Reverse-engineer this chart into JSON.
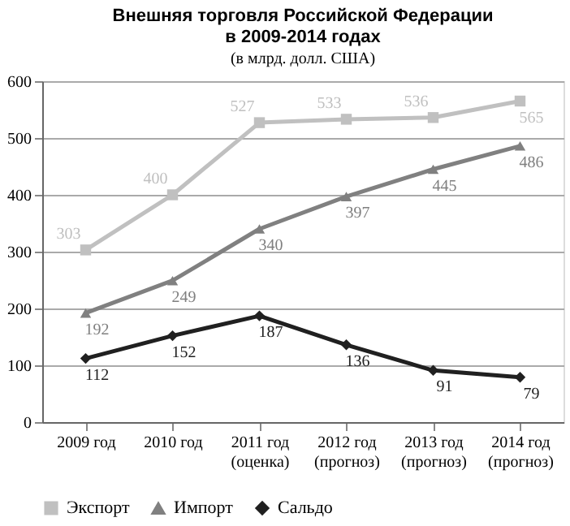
{
  "chart_data": {
    "type": "line",
    "title": "Внешняя торговля Российской  Федерации\nв  2009-2014 годах",
    "subtitle": "(в  млрд. долл. США)",
    "categories": [
      "2009 год",
      "2010 год",
      "2011 год\n(оценка)",
      "2012 год\n(прогноз)",
      "2013 год\n(прогноз)",
      "2014 год\n(прогноз)"
    ],
    "series": [
      {
        "name": "Экспорт",
        "color": "#c0c0c0",
        "marker": "square",
        "values": [
          303,
          400,
          527,
          533,
          536,
          565
        ]
      },
      {
        "name": "Импорт",
        "color": "#808080",
        "marker": "triangle",
        "values": [
          192,
          249,
          340,
          397,
          445,
          486
        ]
      },
      {
        "name": "Сальдо",
        "color": "#202020",
        "marker": "diamond",
        "values": [
          112,
          152,
          187,
          136,
          91,
          79
        ]
      }
    ],
    "ylim": [
      0,
      600
    ],
    "yticks": [
      0,
      100,
      200,
      300,
      400,
      500,
      600
    ],
    "grid": "y",
    "legend": "bottom",
    "data_labels": true,
    "line_style": "solid"
  }
}
